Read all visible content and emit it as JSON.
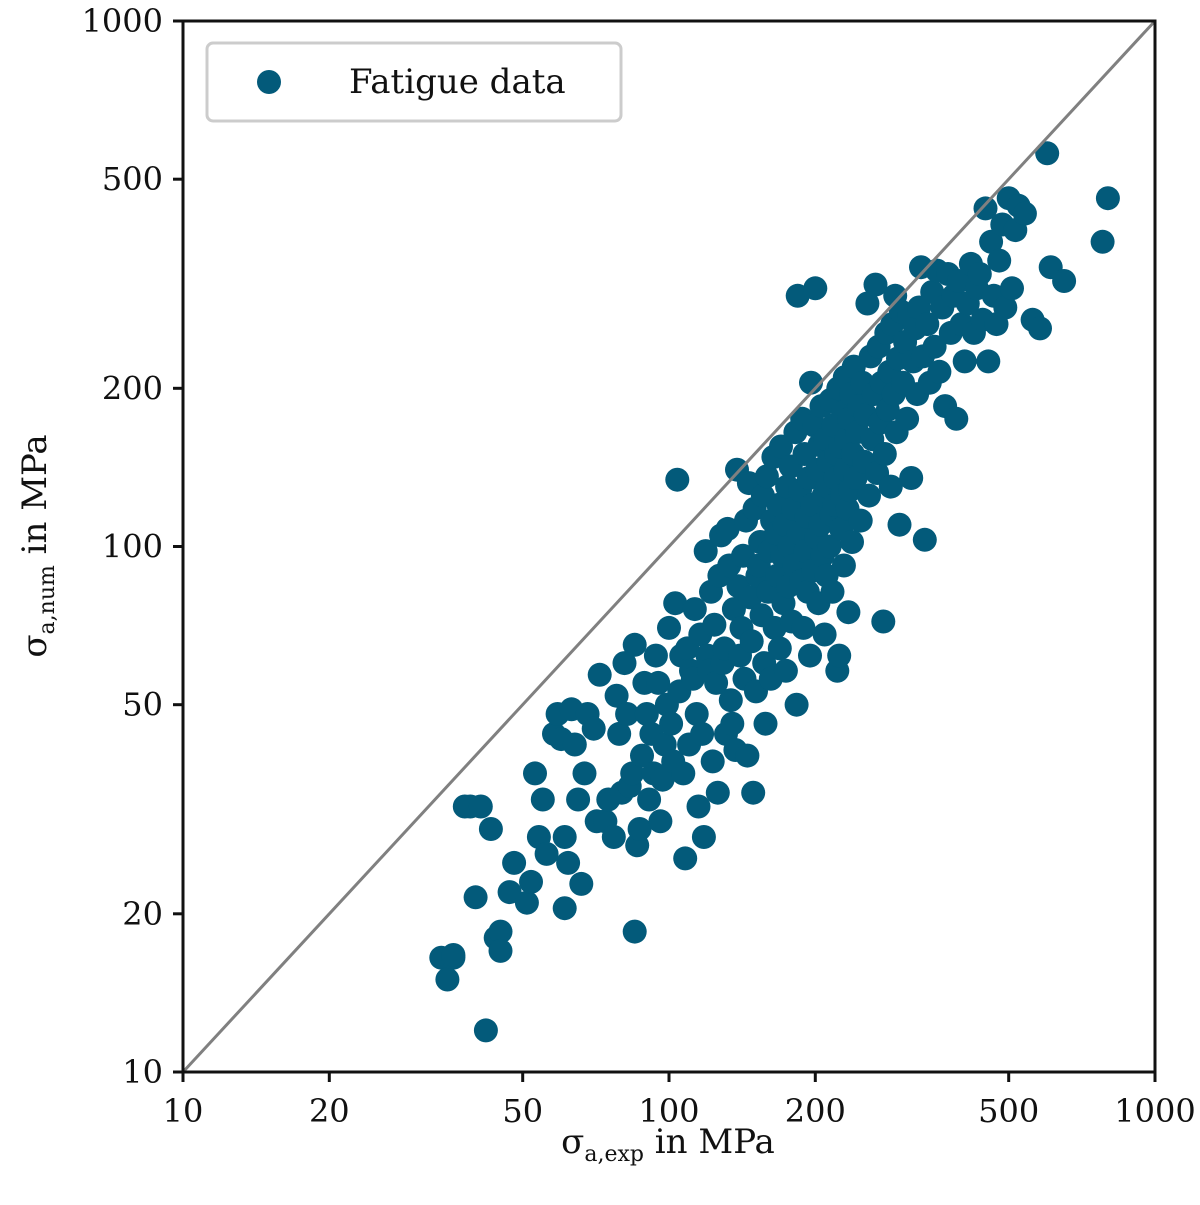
{
  "colors": {
    "marker": "#035a7a",
    "reference_line": "#808080",
    "axes": "#111111"
  },
  "chart_data": {
    "type": "scatter",
    "title": "",
    "xlabel": {
      "symbol": "σ",
      "subscript": "a,exp",
      "suffix": " in MPa"
    },
    "ylabel": {
      "symbol": "σ",
      "subscript": "a,num",
      "suffix": " in MPa"
    },
    "xscale": "log",
    "yscale": "log",
    "xlim": [
      10,
      1000
    ],
    "ylim": [
      10,
      1000
    ],
    "xticks": [
      10,
      20,
      50,
      100,
      200,
      500,
      1000
    ],
    "yticks": [
      10,
      20,
      50,
      100,
      200,
      500,
      1000
    ],
    "grid": false,
    "legend": {
      "position": "top-left",
      "entries": [
        "Fatigue data"
      ]
    },
    "reference_line": {
      "label": "",
      "from": [
        10,
        10
      ],
      "to": [
        1000,
        1000
      ]
    },
    "series": [
      {
        "name": "Fatigue data",
        "points": [
          [
            34,
            16.5
          ],
          [
            35,
            15
          ],
          [
            36,
            16.5
          ],
          [
            36,
            16.7
          ],
          [
            38,
            32
          ],
          [
            39,
            32
          ],
          [
            40,
            21.5
          ],
          [
            41,
            32
          ],
          [
            42,
            12
          ],
          [
            43,
            29
          ],
          [
            44,
            18
          ],
          [
            45,
            18.5
          ],
          [
            45,
            17
          ],
          [
            47,
            22
          ],
          [
            48,
            25
          ],
          [
            51,
            21
          ],
          [
            52,
            23
          ],
          [
            53,
            37
          ],
          [
            54,
            28
          ],
          [
            55,
            33
          ],
          [
            56,
            26
          ],
          [
            58,
            44
          ],
          [
            59,
            48
          ],
          [
            60,
            43
          ],
          [
            61,
            20.5
          ],
          [
            61,
            28
          ],
          [
            62,
            25
          ],
          [
            63,
            49
          ],
          [
            64,
            42
          ],
          [
            65,
            33
          ],
          [
            66,
            22.8
          ],
          [
            67,
            37
          ],
          [
            68,
            48
          ],
          [
            70,
            45
          ],
          [
            71,
            30
          ],
          [
            72,
            57
          ],
          [
            74,
            30
          ],
          [
            75,
            33
          ],
          [
            77,
            28
          ],
          [
            78,
            52
          ],
          [
            79,
            44
          ],
          [
            80,
            34
          ],
          [
            81,
            60
          ],
          [
            82,
            48
          ],
          [
            83,
            35
          ],
          [
            84,
            37
          ],
          [
            85,
            65
          ],
          [
            85,
            18.5
          ],
          [
            86,
            27
          ],
          [
            87,
            29
          ],
          [
            88,
            40
          ],
          [
            89,
            55
          ],
          [
            90,
            48
          ],
          [
            91,
            33
          ],
          [
            92,
            44
          ],
          [
            93,
            37
          ],
          [
            94,
            62
          ],
          [
            95,
            55
          ],
          [
            96,
            30
          ],
          [
            97,
            36
          ],
          [
            98,
            42
          ],
          [
            99,
            50
          ],
          [
            100,
            70
          ],
          [
            101,
            46
          ],
          [
            102,
            39
          ],
          [
            103,
            78
          ],
          [
            104,
            134
          ],
          [
            105,
            53
          ],
          [
            106,
            62
          ],
          [
            107,
            37
          ],
          [
            108,
            25.5
          ],
          [
            109,
            64
          ],
          [
            110,
            42
          ],
          [
            111,
            58
          ],
          [
            112,
            56
          ],
          [
            113,
            76
          ],
          [
            114,
            48
          ],
          [
            115,
            32
          ],
          [
            116,
            68
          ],
          [
            117,
            44
          ],
          [
            118,
            28
          ],
          [
            119,
            98
          ],
          [
            120,
            62
          ],
          [
            121,
            58
          ],
          [
            122,
            82
          ],
          [
            123,
            39
          ],
          [
            124,
            71
          ],
          [
            125,
            55
          ],
          [
            126,
            34
          ],
          [
            127,
            88
          ],
          [
            128,
            105
          ],
          [
            129,
            60
          ],
          [
            130,
            64
          ],
          [
            131,
            44
          ],
          [
            132,
            108
          ],
          [
            133,
            92
          ],
          [
            134,
            51
          ],
          [
            135,
            46
          ],
          [
            136,
            76
          ],
          [
            137,
            41
          ],
          [
            138,
            140
          ],
          [
            139,
            84
          ],
          [
            140,
            62
          ],
          [
            141,
            70
          ],
          [
            142,
            96
          ],
          [
            143,
            56
          ],
          [
            144,
            112
          ],
          [
            145,
            40
          ],
          [
            146,
            132
          ],
          [
            147,
            80
          ],
          [
            148,
            66
          ],
          [
            149,
            34
          ],
          [
            150,
            118
          ],
          [
            151,
            53
          ],
          [
            152,
            88
          ],
          [
            153,
            92
          ],
          [
            154,
            102
          ],
          [
            155,
            74
          ],
          [
            156,
            125
          ],
          [
            157,
            60
          ],
          [
            158,
            46
          ],
          [
            159,
            136
          ],
          [
            160,
            82
          ],
          [
            161,
            98
          ],
          [
            162,
            56
          ],
          [
            163,
            112
          ],
          [
            164,
            148
          ],
          [
            165,
            70
          ],
          [
            166,
            106
          ],
          [
            167,
            88
          ],
          [
            168,
            120
          ],
          [
            169,
            64
          ],
          [
            170,
            155
          ],
          [
            171,
            96
          ],
          [
            172,
            78
          ],
          [
            173,
            110
          ],
          [
            174,
            58
          ],
          [
            175,
            130
          ],
          [
            176,
            84
          ],
          [
            177,
            100
          ],
          [
            178,
            142
          ],
          [
            179,
            72
          ],
          [
            180,
            118
          ],
          [
            181,
            92
          ],
          [
            182,
            165
          ],
          [
            183,
            50
          ],
          [
            184,
            300
          ],
          [
            185,
            106
          ],
          [
            186,
            128
          ],
          [
            187,
            86
          ],
          [
            188,
            175
          ],
          [
            189,
            70
          ],
          [
            190,
            150
          ],
          [
            191,
            98
          ],
          [
            192,
            114
          ],
          [
            193,
            82
          ],
          [
            194,
            135
          ],
          [
            195,
            62
          ],
          [
            196,
            205
          ],
          [
            197,
            120
          ],
          [
            198,
            90
          ],
          [
            199,
            170
          ],
          [
            200,
            310
          ],
          [
            201,
            104
          ],
          [
            202,
            140
          ],
          [
            203,
            78
          ],
          [
            204,
            156
          ],
          [
            205,
            110
          ],
          [
            206,
            185
          ],
          [
            207,
            96
          ],
          [
            208,
            125
          ],
          [
            209,
            68
          ],
          [
            210,
            160
          ],
          [
            211,
            88
          ],
          [
            212,
            130
          ],
          [
            213,
            145
          ],
          [
            214,
            100
          ],
          [
            215,
            190
          ],
          [
            216,
            115
          ],
          [
            217,
            82
          ],
          [
            218,
            170
          ],
          [
            219,
            120
          ],
          [
            220,
            135
          ],
          [
            221,
            150
          ],
          [
            222,
            58
          ],
          [
            223,
            200
          ],
          [
            224,
            62
          ],
          [
            225,
            155
          ],
          [
            226,
            108
          ],
          [
            227,
            125
          ],
          [
            228,
            180
          ],
          [
            229,
            92
          ],
          [
            230,
            210
          ],
          [
            231,
            140
          ],
          [
            232,
            160
          ],
          [
            233,
            118
          ],
          [
            234,
            75
          ],
          [
            235,
            175
          ],
          [
            236,
            128
          ],
          [
            237,
            195
          ],
          [
            238,
            102
          ],
          [
            239,
            150
          ],
          [
            240,
            220
          ],
          [
            242,
            135
          ],
          [
            244,
            165
          ],
          [
            246,
            185
          ],
          [
            248,
            112
          ],
          [
            250,
            205
          ],
          [
            252,
            145
          ],
          [
            254,
            178
          ],
          [
            256,
            290
          ],
          [
            258,
            125
          ],
          [
            260,
            230
          ],
          [
            262,
            160
          ],
          [
            264,
            195
          ],
          [
            266,
            315
          ],
          [
            268,
            138
          ],
          [
            270,
            240
          ],
          [
            272,
            172
          ],
          [
            274,
            205
          ],
          [
            276,
            72
          ],
          [
            278,
            150
          ],
          [
            280,
            255
          ],
          [
            282,
            182
          ],
          [
            284,
            215
          ],
          [
            286,
            130
          ],
          [
            288,
            265
          ],
          [
            290,
            195
          ],
          [
            292,
            300
          ],
          [
            294,
            165
          ],
          [
            296,
            228
          ],
          [
            298,
            110
          ],
          [
            300,
            280
          ],
          [
            303,
            205
          ],
          [
            306,
            245
          ],
          [
            309,
            175
          ],
          [
            312,
            275
          ],
          [
            315,
            135
          ],
          [
            318,
            225
          ],
          [
            321,
            260
          ],
          [
            324,
            195
          ],
          [
            327,
            285
          ],
          [
            330,
            340
          ],
          [
            333,
            230
          ],
          [
            336,
            103
          ],
          [
            340,
            265
          ],
          [
            344,
            205
          ],
          [
            348,
            305
          ],
          [
            352,
            240
          ],
          [
            356,
            335
          ],
          [
            360,
            215
          ],
          [
            365,
            285
          ],
          [
            370,
            185
          ],
          [
            375,
            330
          ],
          [
            380,
            255
          ],
          [
            385,
            300
          ],
          [
            390,
            175
          ],
          [
            395,
            320
          ],
          [
            400,
            265
          ],
          [
            406,
            225
          ],
          [
            412,
            290
          ],
          [
            418,
            345
          ],
          [
            424,
            255
          ],
          [
            430,
            310
          ],
          [
            436,
            330
          ],
          [
            442,
            270
          ],
          [
            448,
            440
          ],
          [
            454,
            225
          ],
          [
            460,
            380
          ],
          [
            466,
            300
          ],
          [
            472,
            265
          ],
          [
            478,
            350
          ],
          [
            485,
            410
          ],
          [
            492,
            285
          ],
          [
            500,
            460
          ],
          [
            508,
            310
          ],
          [
            516,
            400
          ],
          [
            524,
            445
          ],
          [
            540,
            430
          ],
          [
            560,
            270
          ],
          [
            580,
            260
          ],
          [
            600,
            560
          ],
          [
            610,
            340
          ],
          [
            650,
            320
          ],
          [
            780,
            380
          ],
          [
            800,
            460
          ]
        ]
      }
    ]
  }
}
